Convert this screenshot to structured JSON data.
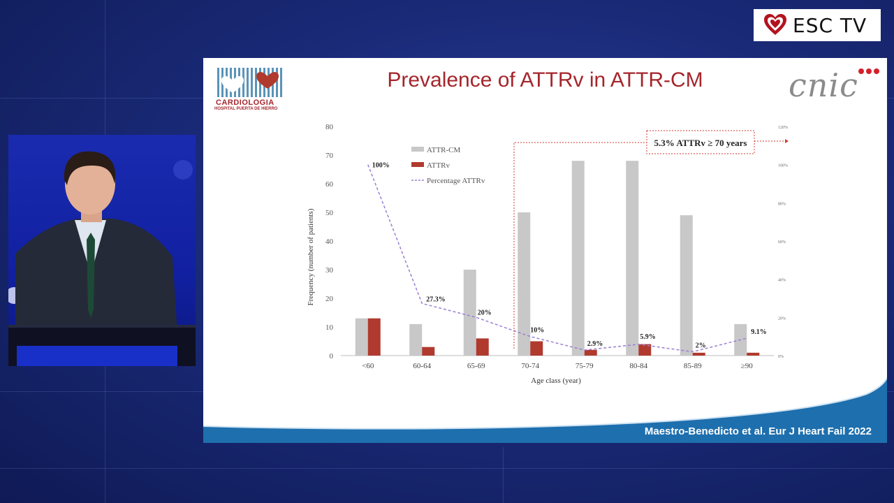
{
  "badge": {
    "label": "ESC TV"
  },
  "slide": {
    "title": "Prevalence of ATTRv in ATTR-CM",
    "logo_left": {
      "line1": "CARDIOLOGIA",
      "line2": "HOSPITAL PUERTA DE HIERRO"
    },
    "logo_right": {
      "text": "cnic"
    },
    "citation": "Maestro-Benedicto et al. Eur J Heart Fail 2022"
  },
  "colors": {
    "attr_cm": "#c8c8c8",
    "attrv": "#b03a2e",
    "percentage": "#9b7fd4",
    "title": "#a4262c"
  },
  "chart_data": {
    "type": "bar",
    "categories": [
      "<60",
      "60-64",
      "65-69",
      "70-74",
      "75-79",
      "80-84",
      "85-89",
      "≥90"
    ],
    "series": [
      {
        "name": "ATTR-CM",
        "values": [
          13,
          11,
          30,
          50,
          68,
          68,
          49,
          11
        ]
      },
      {
        "name": "ATTRv",
        "values": [
          13,
          3,
          6,
          5,
          2,
          4,
          1,
          1
        ]
      },
      {
        "name": "Percentage ATTRv",
        "type": "line",
        "axis": "right",
        "values": [
          100,
          27.3,
          20,
          10,
          2.9,
          5.9,
          2,
          9.1
        ]
      }
    ],
    "data_labels": [
      "100%",
      "27.3%",
      "20%",
      "10%",
      "2.9%",
      "5.9%",
      "2%",
      "9.1%"
    ],
    "xlabel": "Age class (year)",
    "ylabel": "Frequency (number of patients)",
    "ylim": [
      0,
      80
    ],
    "yticks": [
      0,
      10,
      20,
      30,
      40,
      50,
      60,
      70,
      80
    ],
    "y2lim": [
      0,
      120
    ],
    "y2ticks": [
      "0%",
      "20%",
      "40%",
      "60%",
      "80%",
      "100%",
      "120%"
    ],
    "legend_position": "top-left",
    "annotation": "5.3% ATTRv ≥ 70 years"
  }
}
